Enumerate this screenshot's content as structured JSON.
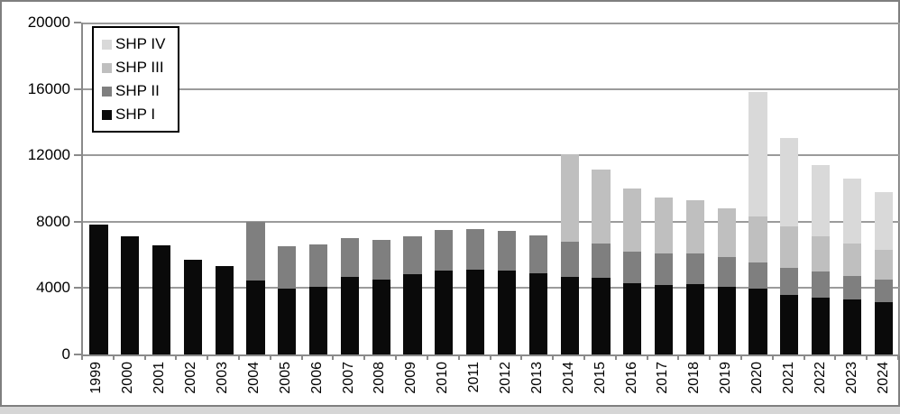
{
  "chart_data": {
    "type": "bar",
    "stacked": true,
    "title": "",
    "xlabel": "",
    "ylabel": "",
    "categories": [
      "1999",
      "2000",
      "2001",
      "2002",
      "2003",
      "2004",
      "2005",
      "2006",
      "2007",
      "2008",
      "2009",
      "2010",
      "2011",
      "2012",
      "2013",
      "2014",
      "2015",
      "2016",
      "2017",
      "2018",
      "2019",
      "2020",
      "2021",
      "2022",
      "2023",
      "2024"
    ],
    "series": [
      {
        "name": "SHP I",
        "color": "#0a0a0a",
        "values": [
          7800,
          7100,
          6600,
          5700,
          5300,
          4450,
          3950,
          4050,
          4700,
          4500,
          4850,
          5050,
          5100,
          5050,
          4900,
          4700,
          4600,
          4300,
          4200,
          4250,
          4050,
          3950,
          3600,
          3400,
          3300,
          3150
        ]
      },
      {
        "name": "SHP II",
        "color": "#7f7f7f",
        "values": [
          0,
          0,
          0,
          0,
          0,
          3550,
          2600,
          2600,
          2300,
          2400,
          2250,
          2450,
          2450,
          2400,
          2300,
          2100,
          2100,
          1900,
          1900,
          1850,
          1800,
          1600,
          1600,
          1600,
          1450,
          1350
        ]
      },
      {
        "name": "SHP III",
        "color": "#bfbfbf",
        "values": [
          0,
          0,
          0,
          0,
          0,
          0,
          0,
          0,
          0,
          0,
          0,
          0,
          0,
          0,
          0,
          5250,
          4450,
          3800,
          3350,
          3200,
          2950,
          2750,
          2500,
          2100,
          1950,
          1800
        ]
      },
      {
        "name": "SHP IV",
        "color": "#d9d9d9",
        "values": [
          0,
          0,
          0,
          0,
          0,
          0,
          0,
          0,
          0,
          0,
          0,
          0,
          0,
          0,
          0,
          0,
          0,
          0,
          0,
          0,
          0,
          7500,
          5350,
          4300,
          3900,
          3500
        ]
      }
    ],
    "legend": [
      {
        "label": "SHP IV",
        "color": "#d9d9d9"
      },
      {
        "label": "SHP III",
        "color": "#bfbfbf"
      },
      {
        "label": "SHP II",
        "color": "#7f7f7f"
      },
      {
        "label": "SHP I",
        "color": "#0a0a0a"
      }
    ],
    "legend_position": "top-left",
    "y_axis": {
      "min": 0,
      "max": 20000,
      "step": 4000,
      "ticks": [
        "0",
        "4000",
        "8000",
        "12000",
        "16000",
        "20000"
      ]
    },
    "grid": true
  },
  "colors": {
    "gridline": "#9b9b9b",
    "axis": "#8a8a8a",
    "frame_border": "#7f7f7f",
    "background": "#ffffff",
    "bottom_strip": "#d6d6d6"
  }
}
